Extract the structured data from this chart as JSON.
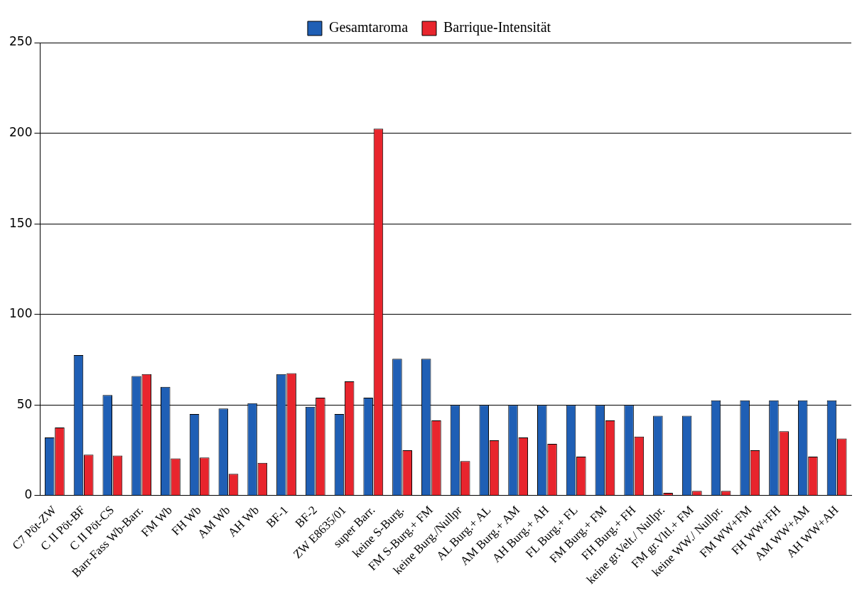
{
  "chart_data": {
    "type": "bar",
    "categories": [
      "C7 Pöt-ZW",
      "C II Pöt-BF",
      "C II Pöt-CS",
      "Barr-Fass Wb-Barr.",
      "FM Wb",
      "FH Wb",
      "AM Wb",
      "AH Wb",
      "BF-1",
      "BF-2",
      "ZW E8635/01",
      "super Barr.",
      "keine S-Burg.",
      "FM S-Burg.+ FM",
      "keine Burg./Nullpr",
      "AL Burg.+ AL",
      "AM Burg.+ AM",
      "AH Burg.+ AH",
      "FL Burg.+ FL",
      "FM Burg.+ FM",
      "FH Burg.+ FH",
      "keine gr.Velt./ Nullpr.",
      "FM gr.Vltl.+ FM",
      "keine WW./ Nullpr.",
      "FM WW+FM",
      "FH WW+FH",
      "AM WW+AM",
      "AH WW+AH"
    ],
    "series": [
      {
        "name": "Gesamtaroma",
        "color": "#1f5fb5",
        "values": [
          32,
          77.5,
          55.5,
          66,
          60,
          45,
          48,
          51,
          67,
          49,
          45,
          54,
          75.5,
          75.5,
          50,
          50,
          50,
          50,
          50,
          50,
          50,
          44,
          44,
          52.5,
          52.5,
          52.5,
          52.5,
          52.5
        ]
      },
      {
        "name": "Barrique-Intensität",
        "color": "#e8252d",
        "values": [
          37.5,
          22.5,
          22,
          67,
          20.5,
          21,
          12,
          18,
          67.5,
          54,
          63,
          202.5,
          25,
          41.5,
          19,
          30.5,
          32,
          28.5,
          21.5,
          41.5,
          32.5,
          1.5,
          2.5,
          2.5,
          25,
          35.5,
          21.5,
          31.5
        ]
      }
    ],
    "ylim": [
      0,
      250
    ],
    "yticks": [
      0,
      50,
      100,
      150,
      200,
      250
    ],
    "grid": "y",
    "legend": "top"
  }
}
